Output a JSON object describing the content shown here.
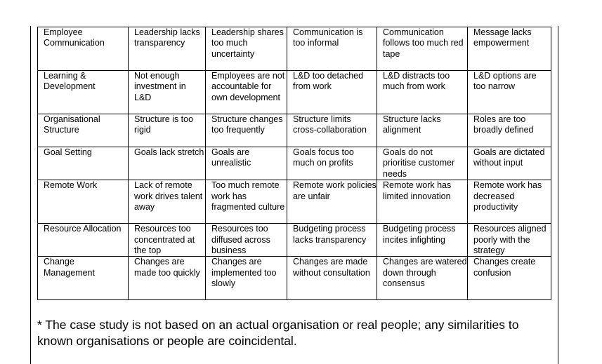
{
  "rows": [
    {
      "category": "Employee Communication",
      "cells": [
        "Leadership lacks transparency",
        "Leadership shares too much uncertainty",
        "Communication is too informal",
        "Communication follows too much red tape",
        "Message lacks empowerment"
      ]
    },
    {
      "category": "Learning & Development",
      "cells": [
        "Not enough investment in L&D",
        "Employees are not accountable for own development",
        "L&D too detached from work",
        "L&D distracts too much from work",
        "L&D options are too narrow"
      ]
    },
    {
      "category": "Organisational Structure",
      "cells": [
        "Structure is too rigid",
        "Structure changes too frequently",
        "Structure limits cross-collaboration",
        "Structure lacks alignment",
        "Roles are too broadly defined"
      ]
    },
    {
      "category": "Goal Setting",
      "cells": [
        "Goals lack stretch",
        "Goals are unrealistic",
        "Goals focus too much on profits",
        "Goals do not prioritise customer needs",
        "Goals are dictated without input"
      ]
    },
    {
      "category": "Remote Work",
      "cells": [
        "Lack of remote work drives talent away",
        "Too much remote work has fragmented culture",
        "Remote work policies are unfair",
        "Remote work has limited innovation",
        "Remote work has decreased productivity"
      ]
    },
    {
      "category": "Resource Allocation",
      "cells": [
        "Resources too concentrated at the top",
        "Resources too diffused across business",
        "Budgeting process lacks transparency",
        "Budgeting process incites infighting",
        "Resources aligned poorly with the strategy"
      ]
    },
    {
      "category": "Change Management",
      "cells": [
        "Changes are made too quickly",
        "Changes are implemented too slowly",
        "Changes are made without consultation",
        "Changes are watered down through consensus",
        "Changes create confusion"
      ]
    }
  ],
  "footnote": "* The case study is not based on an actual organisation or real people; any similarities to known organisations or people are coincidental."
}
